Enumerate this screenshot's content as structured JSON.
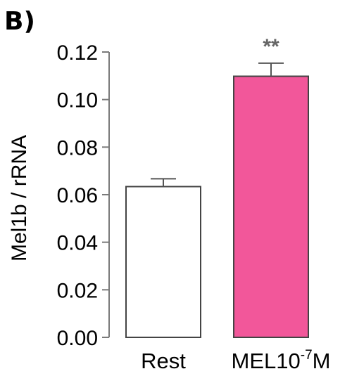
{
  "panel_label": "B)",
  "chart_data": {
    "type": "bar",
    "categories": [
      "Rest",
      "MEL10-7M"
    ],
    "category_labels": [
      {
        "base": "Rest",
        "sup": "",
        "tail": ""
      },
      {
        "base": "MEL10",
        "sup": "-7",
        "tail": "M"
      }
    ],
    "values": [
      0.0634,
      0.1098
    ],
    "errors": [
      0.0033,
      0.0055
    ],
    "annotations": [
      "",
      "**"
    ],
    "bar_colors": [
      "#ffffff",
      "#f2579a"
    ],
    "bar_edge_color": "#444444",
    "ylabel": "Mel1b / rRNA",
    "xlabel": "",
    "ylim": [
      0,
      0.12
    ],
    "yticks": [
      0.0,
      0.02,
      0.04,
      0.06,
      0.08,
      0.1,
      0.12
    ],
    "ytick_labels": [
      "0.00",
      "0.02",
      "0.04",
      "0.06",
      "0.08",
      "0.10",
      "0.12"
    ],
    "grid": false
  }
}
